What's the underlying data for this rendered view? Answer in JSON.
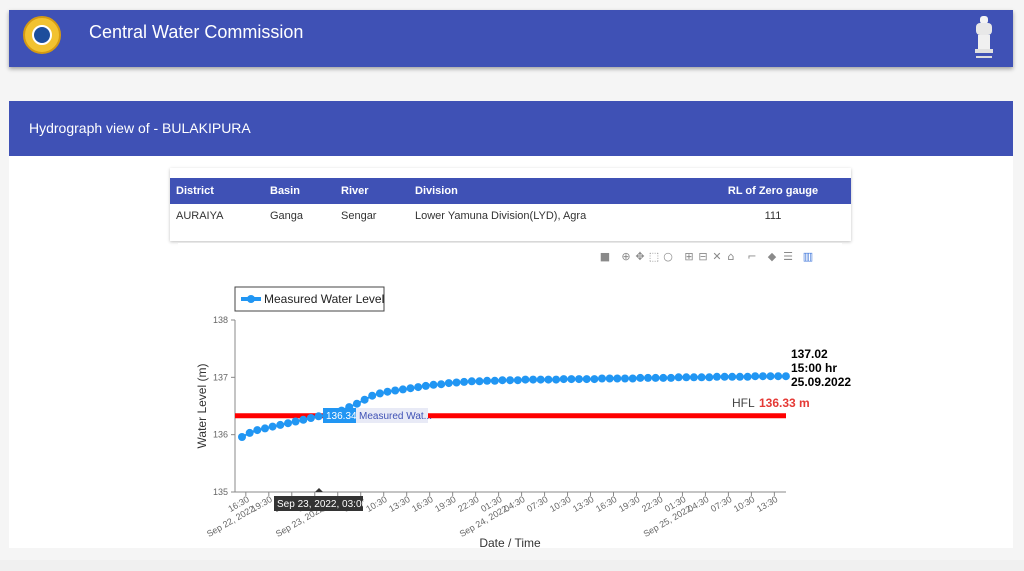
{
  "header": {
    "title": "Central Water Commission",
    "logo_icon": "cwc-logo-icon",
    "emblem_icon": "national-emblem-icon"
  },
  "page": {
    "subtitle": "Hydrograph view of - BULAKIPURA"
  },
  "station_table": {
    "columns": [
      "District",
      "Basin",
      "River",
      "Division",
      "RL of Zero gauge"
    ],
    "row": [
      "AURAIYA",
      "Ganga",
      "Sengar",
      "Lower Yamuna Division(LYD), Agra",
      "111"
    ]
  },
  "modebar": {
    "icons": [
      "camera-icon",
      "zoom-icon",
      "pan-icon",
      "box-select-icon",
      "lasso-select-icon",
      "zoom-in-icon",
      "zoom-out-icon",
      "autoscale-icon",
      "reset-axes-icon",
      "spike-lines-icon",
      "hover-closest-icon",
      "hover-compare-icon",
      "plotly-logo-icon"
    ]
  },
  "chart_data": {
    "type": "line",
    "xlabel": "Date / Time",
    "ylabel": "Water Level (m)",
    "ylim": [
      135,
      138
    ],
    "yticks": [
      135,
      136,
      137,
      138
    ],
    "legend": {
      "label": "Measured Water Level",
      "placement": "top-left"
    },
    "x_tick_labels": [
      "16:30\nSep 22, 2022",
      "19:30",
      "22:30",
      "01:30\nSep 23, 2022",
      "04:30",
      "07:30",
      "10:30",
      "13:30",
      "16:30",
      "19:30",
      "22:30",
      "01:30\nSep 24, 2022",
      "04:30",
      "07:30",
      "10:30",
      "13:30",
      "16:30",
      "19:30",
      "22:30",
      "01:30\nSep 25, 2022",
      "04:30",
      "07:30",
      "10:30",
      "13:30"
    ],
    "series": [
      {
        "name": "Measured Water Level",
        "color": "#2196f3",
        "start": "Sep 22, 2022 16:00",
        "interval_hours": 1,
        "values": [
          135.96,
          136.03,
          136.08,
          136.11,
          136.14,
          136.17,
          136.2,
          136.23,
          136.26,
          136.29,
          136.32,
          136.34,
          136.37,
          136.42,
          136.48,
          136.54,
          136.61,
          136.68,
          136.72,
          136.75,
          136.77,
          136.79,
          136.81,
          136.83,
          136.85,
          136.87,
          136.88,
          136.9,
          136.91,
          136.92,
          136.93,
          136.93,
          136.94,
          136.94,
          136.95,
          136.95,
          136.95,
          136.96,
          136.96,
          136.96,
          136.96,
          136.96,
          136.97,
          136.97,
          136.97,
          136.97,
          136.97,
          136.98,
          136.98,
          136.98,
          136.98,
          136.98,
          136.99,
          136.99,
          136.99,
          136.99,
          136.99,
          137.0,
          137.0,
          137.0,
          137.0,
          137.0,
          137.01,
          137.01,
          137.01,
          137.01,
          137.01,
          137.02,
          137.02,
          137.02,
          137.02,
          137.02
        ]
      }
    ],
    "hfl": {
      "label": "HFL",
      "value": "136.33 m",
      "level": 136.33,
      "color": "#ff0000"
    },
    "last_reading": {
      "value": "137.02",
      "time": "15:00 hr",
      "date": "25.09.2022"
    },
    "hover": {
      "x_label": "Sep 23, 2022, 03:00",
      "value": "136.34",
      "series_label": "Measured Wat..."
    }
  }
}
